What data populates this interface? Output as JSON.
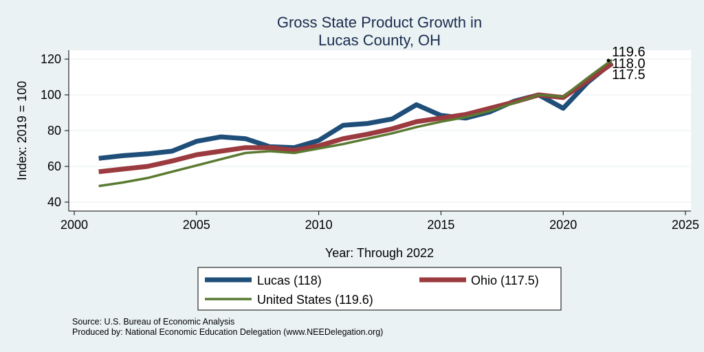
{
  "chart_data": {
    "type": "line",
    "title": [
      "Gross State Product Growth in",
      "Lucas County, OH"
    ],
    "xlabel": "Year: Through 2022",
    "ylabel": "Index: 2019 = 100",
    "xlim": [
      2000,
      2025
    ],
    "ylim": [
      40,
      120
    ],
    "xticks": [
      2000,
      2005,
      2010,
      2015,
      2020,
      2025
    ],
    "yticks": [
      40,
      60,
      80,
      100,
      120
    ],
    "grid": "horizontal",
    "x": [
      2001,
      2002,
      2003,
      2004,
      2005,
      2006,
      2007,
      2008,
      2009,
      2010,
      2011,
      2012,
      2013,
      2014,
      2015,
      2016,
      2017,
      2018,
      2019,
      2020,
      2021,
      2022
    ],
    "series": [
      {
        "name": "Lucas",
        "legend": "Lucas  (118)",
        "color": "#1f4e79",
        "values": [
          64.5,
          66,
          67,
          68.5,
          74,
          76.5,
          75.5,
          71,
          70.5,
          74.5,
          83,
          84,
          86.5,
          94.5,
          88.5,
          87,
          90.5,
          96.5,
          100,
          92.5,
          107,
          118
        ]
      },
      {
        "name": "Ohio",
        "legend": "Ohio (117.5)",
        "color": "#9b3a3f",
        "values": [
          57,
          58.5,
          60,
          63,
          66.5,
          68.5,
          70.5,
          70.5,
          69,
          71.5,
          75.5,
          78,
          81,
          85,
          87,
          89,
          92.5,
          96,
          100,
          98.5,
          108,
          117.5
        ]
      },
      {
        "name": "United States",
        "legend": "United States (119.6)",
        "color": "#5a7a32",
        "values": [
          49,
          51,
          53.5,
          57,
          60.5,
          64,
          67.5,
          68.5,
          67.5,
          70,
          72.5,
          75.5,
          78.5,
          82,
          85,
          87.5,
          91,
          95.5,
          100,
          99,
          109.5,
          119.6
        ]
      }
    ],
    "end_labels": [
      "119.6",
      "118.0",
      "117.5"
    ],
    "legend_position": "bottom",
    "notes": [
      "Source: U.S. Bureau of Economic Analysis",
      "Produced by: National Economic Education Delegation (www.NEEDelegation.org)"
    ]
  }
}
